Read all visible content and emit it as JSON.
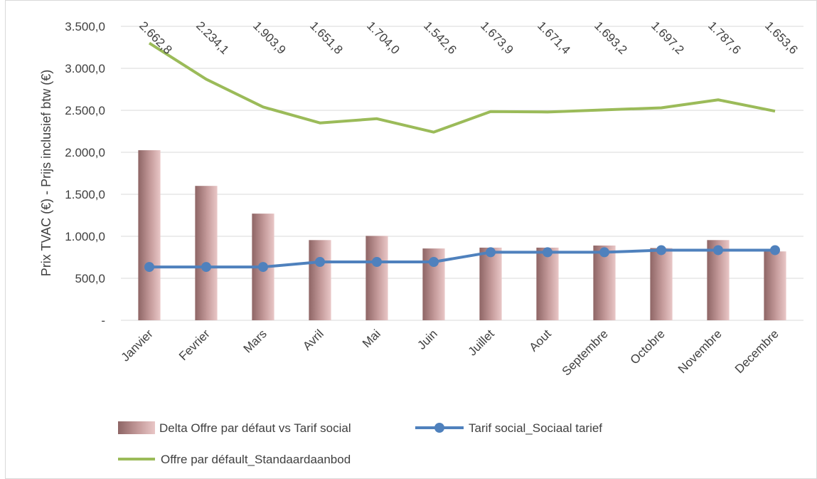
{
  "chart_data": {
    "type": "bar",
    "title": "",
    "xlabel": "",
    "ylabel": "Prix TVAC (€) - Prijs inclusief btw (€)",
    "ylim": [
      0,
      3500
    ],
    "y_ticks": [
      0,
      500,
      1000,
      1500,
      2000,
      2500,
      3000,
      3500
    ],
    "y_tick_labels": [
      "-",
      "500,0",
      "1.000,0",
      "1.500,0",
      "2.000,0",
      "2.500,0",
      "3.000,0",
      "3.500,0"
    ],
    "grid": true,
    "legend_position": "bottom",
    "categories": [
      "Janvier",
      "Fevrier",
      "Mars",
      "Avril",
      "Mai",
      "Juin",
      "Juillet",
      "Aout",
      "Septembre",
      "Octobre",
      "Novembre",
      "Decembre"
    ],
    "series": [
      {
        "name": "Delta  Offre par défaut vs Tarif social",
        "kind": "bar",
        "color": "#c9a1a1",
        "values": [
          2025,
          1600,
          1270,
          955,
          1005,
          855,
          865,
          865,
          890,
          860,
          955,
          820
        ],
        "data_labels": [
          "2.662,8",
          "2.234,1",
          "1.903,9",
          "1.651,8",
          "1.704,0",
          "1.542,6",
          "1.673,9",
          "1.671,4",
          "1.693,2",
          "1.697,2",
          "1.787,6",
          "1.653,6"
        ]
      },
      {
        "name": "Tarif social_Sociaal tarief",
        "kind": "line-marker",
        "color": "#4f81bd",
        "values": [
          635,
          635,
          635,
          695,
          695,
          695,
          810,
          810,
          810,
          835,
          835,
          835
        ]
      },
      {
        "name": "Offre par défault_Standaardaanbod",
        "kind": "line",
        "color": "#9bbb59",
        "values": [
          3300,
          2870,
          2540,
          2350,
          2400,
          2240,
          2485,
          2480,
          2505,
          2530,
          2625,
          2490
        ]
      }
    ]
  }
}
